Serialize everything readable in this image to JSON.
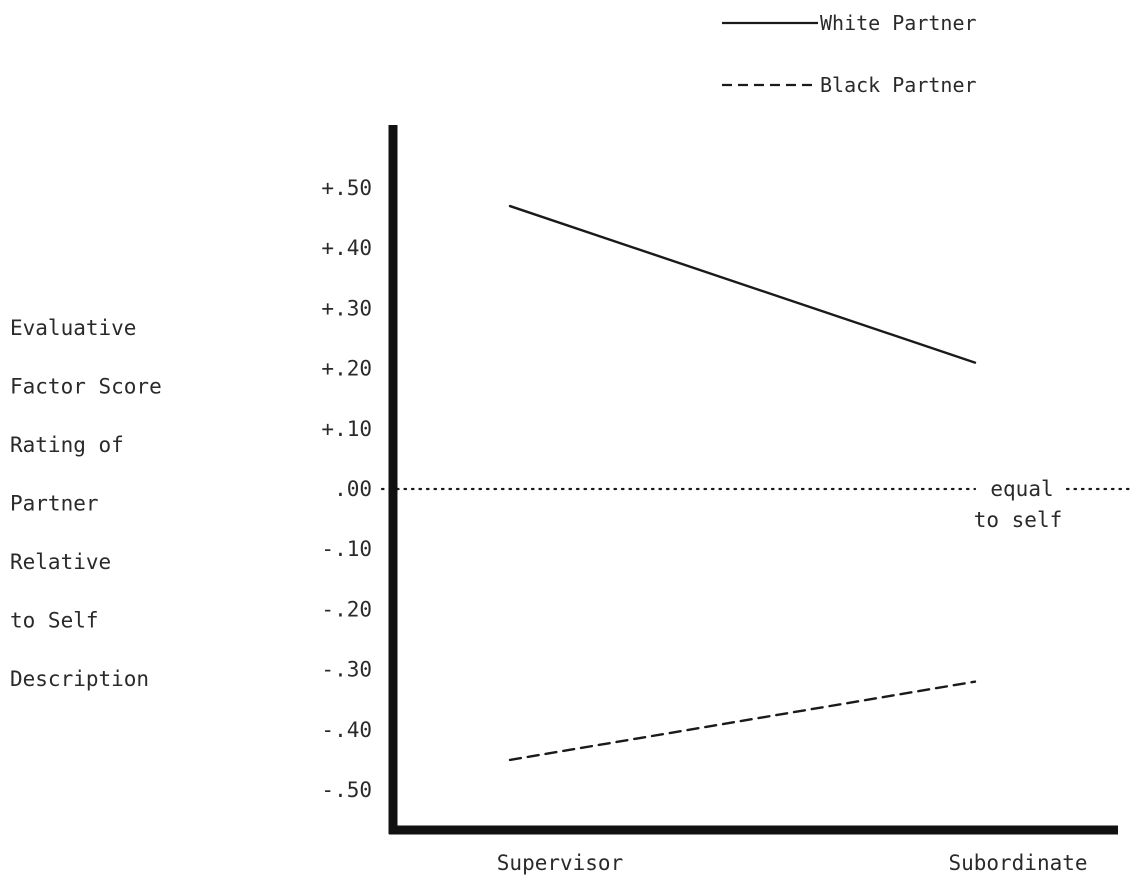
{
  "chart_data": {
    "type": "line",
    "categories": [
      "Supervisor",
      "Subordinate"
    ],
    "series": [
      {
        "name": "White Partner",
        "values": [
          0.47,
          0.21
        ],
        "style": "solid",
        "color": "#1a1a1a"
      },
      {
        "name": "Black Partner",
        "values": [
          -0.45,
          -0.32
        ],
        "style": "dashed",
        "color": "#1a1a1a"
      }
    ],
    "ylabel_lines": [
      "Evaluative",
      "Factor Score",
      "Rating of",
      "Partner",
      "Relative",
      "to Self",
      "Description"
    ],
    "yticks": [
      {
        "value": 0.5,
        "label": "+.50"
      },
      {
        "value": 0.4,
        "label": "+.40"
      },
      {
        "value": 0.3,
        "label": "+.30"
      },
      {
        "value": 0.2,
        "label": "+.20"
      },
      {
        "value": 0.1,
        "label": "+.10"
      },
      {
        "value": 0.0,
        "label": ".00"
      },
      {
        "value": -0.1,
        "label": "-.10"
      },
      {
        "value": -0.2,
        "label": "-.20"
      },
      {
        "value": -0.3,
        "label": "-.30"
      },
      {
        "value": -0.4,
        "label": "-.40"
      },
      {
        "value": -0.5,
        "label": "-.50"
      }
    ],
    "ylim": [
      -0.5,
      0.5
    ],
    "reference_line": {
      "value": 0.0,
      "style": "dotted",
      "label_lines": [
        "equal",
        "to self"
      ]
    },
    "legend_placement": "top-right",
    "grid": false
  }
}
